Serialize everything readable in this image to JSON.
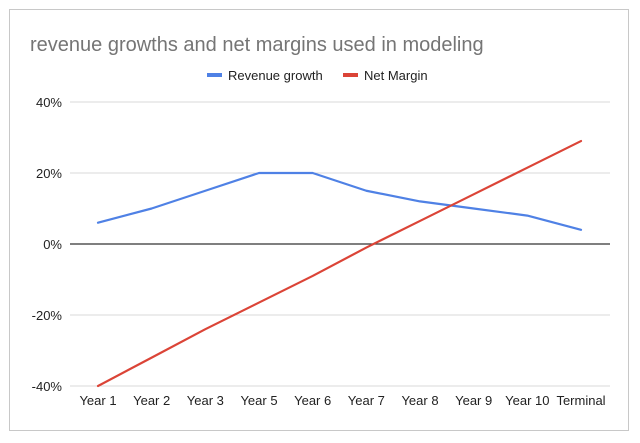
{
  "chart_data": {
    "type": "line",
    "title": "revenue growths and net margins used in modeling",
    "xlabel": "",
    "ylabel": "",
    "categories": [
      "Year 1",
      "Year 2",
      "Year 3",
      "Year 5",
      "Year 6",
      "Year 7",
      "Year 8",
      "Year 9",
      "Year 10",
      "Terminal"
    ],
    "series": [
      {
        "name": "Revenue growth",
        "color": "#4f81e5",
        "values": [
          6,
          10,
          15,
          20,
          20,
          15,
          12,
          10,
          8,
          4
        ]
      },
      {
        "name": "Net Margin",
        "color": "#db4437",
        "values": [
          -40,
          -32,
          -24,
          -16.5,
          -9,
          -1,
          6.5,
          14,
          21.5,
          29
        ]
      }
    ],
    "ylim": [
      -40,
      40
    ],
    "yticks": [
      -40,
      -20,
      0,
      20,
      40
    ],
    "ytick_labels": [
      "-40%",
      "-20%",
      "0%",
      "20%",
      "40%"
    ],
    "grid": true,
    "legend_position": "top"
  }
}
